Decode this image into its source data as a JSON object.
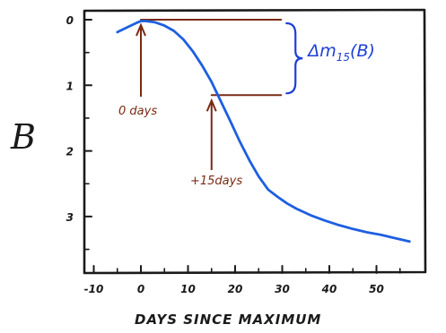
{
  "chart_data": {
    "type": "line",
    "title": "",
    "xlabel": "DAYS SINCE MAXIMUM",
    "ylabel": "B",
    "xlim": [
      -12,
      58
    ],
    "ylim": [
      3.75,
      -0.1
    ],
    "y_inverted": true,
    "grid": false,
    "xticks": [
      -10,
      0,
      10,
      20,
      30,
      40,
      50
    ],
    "xtick_labels": [
      "-10",
      "0",
      "10",
      "20",
      "30",
      "40",
      "50"
    ],
    "yticks": [
      0,
      1,
      2,
      3
    ],
    "ytick_labels": [
      "0",
      "1",
      "2",
      "3"
    ],
    "series": [
      {
        "color": "#1d5fe0",
        "x": [
          -5,
          -3,
          -1,
          0,
          1,
          3,
          5,
          7,
          9,
          11,
          13,
          15,
          17,
          19,
          21,
          23,
          25,
          27,
          29,
          31,
          33,
          36,
          39,
          42,
          45,
          48,
          51,
          54,
          57
        ],
        "y": [
          0.19,
          0.12,
          0.05,
          0.02,
          0.02,
          0.04,
          0.09,
          0.17,
          0.3,
          0.48,
          0.7,
          0.95,
          1.25,
          1.55,
          1.86,
          2.14,
          2.39,
          2.59,
          2.7,
          2.8,
          2.88,
          2.98,
          3.06,
          3.13,
          3.19,
          3.24,
          3.28,
          3.33,
          3.38
        ]
      }
    ],
    "annotations": [
      {
        "text": "0 days",
        "x": 0,
        "y": 0,
        "color": "#7a2a12"
      },
      {
        "text": "+15days",
        "x": 15,
        "y": 1.15,
        "color": "#7a2a12"
      },
      {
        "text": "Δm",
        "subscript": "15",
        "suffix": "(B)",
        "color": "#1d3fd6"
      }
    ],
    "reference_lines": [
      {
        "y": 0,
        "x_from": 0,
        "x_to": 29
      },
      {
        "y": 1.15,
        "x_from": 15,
        "x_to": 29
      }
    ]
  }
}
